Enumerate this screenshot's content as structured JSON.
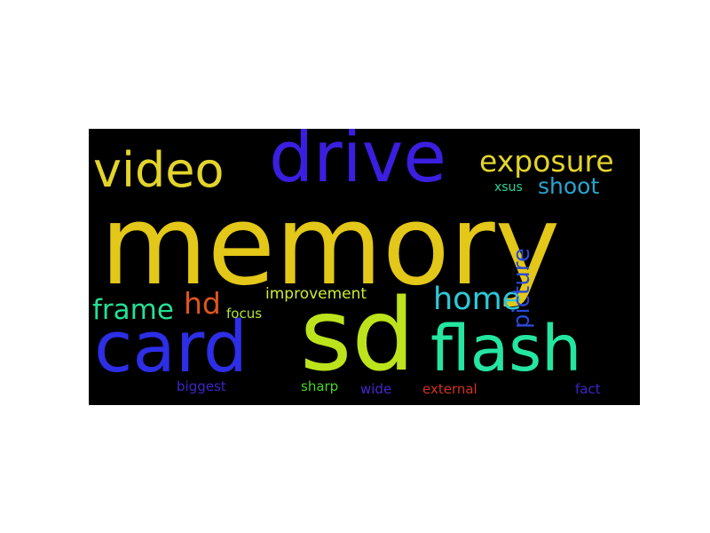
{
  "word_cloud": {
    "background": "#000000",
    "words": [
      {
        "text": "memory",
        "color": "#e3c719"
      },
      {
        "text": "sd",
        "color": "#bde31c"
      },
      {
        "text": "card",
        "color": "#2d2ee6"
      },
      {
        "text": "drive",
        "color": "#3a1fe0"
      },
      {
        "text": "flash",
        "color": "#25e6a1"
      },
      {
        "text": "video",
        "color": "#e3d42c"
      },
      {
        "text": "exposure",
        "color": "#e3d42c"
      },
      {
        "text": "home",
        "color": "#2ec9d6"
      },
      {
        "text": "frame",
        "color": "#25df93"
      },
      {
        "text": "hd",
        "color": "#e0561c"
      },
      {
        "text": "picture",
        "color": "#2a49d6"
      },
      {
        "text": "shoot",
        "color": "#29a4cf"
      },
      {
        "text": "improvement",
        "color": "#cde93a"
      },
      {
        "text": "focus",
        "color": "#b3e33a"
      },
      {
        "text": "xsus",
        "color": "#29d69b"
      },
      {
        "text": "biggest",
        "color": "#3a26c9"
      },
      {
        "text": "sharp",
        "color": "#44d61f"
      },
      {
        "text": "wide",
        "color": "#4a25cf"
      },
      {
        "text": "external",
        "color": "#d2321f"
      },
      {
        "text": "fact",
        "color": "#3a26c9"
      }
    ]
  }
}
